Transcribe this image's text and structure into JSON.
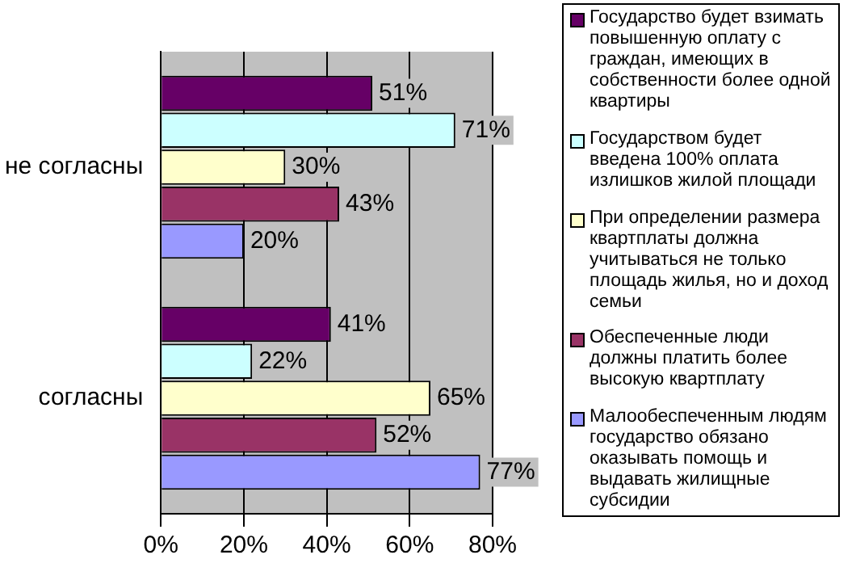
{
  "chart_data": {
    "type": "bar",
    "orientation": "horizontal",
    "categories": [
      "не согласны",
      "согласны"
    ],
    "series": [
      {
        "name": "Государство будет взимать повышенную оплату с граждан, имеющих в собственности более одной квартиры",
        "color": "#660066",
        "values": [
          51,
          41
        ],
        "value_labels": [
          "51%",
          "41%"
        ]
      },
      {
        "name": "Государством будет введена 100% оплата излишков жилой площади",
        "color": "#ccffff",
        "values": [
          71,
          22
        ],
        "value_labels": [
          "71%",
          "22%"
        ]
      },
      {
        "name": "При определении размера квартплаты должна учитываться не только площадь жилья, но и доход семьи",
        "color": "#ffffcc",
        "values": [
          30,
          65
        ],
        "value_labels": [
          "30%",
          "65%"
        ]
      },
      {
        "name": "Обеспеченные люди должны платить более высокую квартплату",
        "color": "#993366",
        "values": [
          43,
          52
        ],
        "value_labels": [
          "43%",
          "52%"
        ]
      },
      {
        "name": "Малообеспеченным людям государство обязано оказывать помощь и выдавать жилищные субсидии",
        "color": "#9999ff",
        "values": [
          20,
          77
        ],
        "value_labels": [
          "20%",
          "77%"
        ]
      }
    ],
    "xlim": [
      0,
      80
    ],
    "xticks": [
      {
        "value": 0,
        "label": "0%"
      },
      {
        "value": 20,
        "label": "20%"
      },
      {
        "value": 40,
        "label": "40%"
      },
      {
        "value": 60,
        "label": "60%"
      },
      {
        "value": 80,
        "label": "80%"
      }
    ],
    "grid": "x",
    "legend": "right"
  }
}
